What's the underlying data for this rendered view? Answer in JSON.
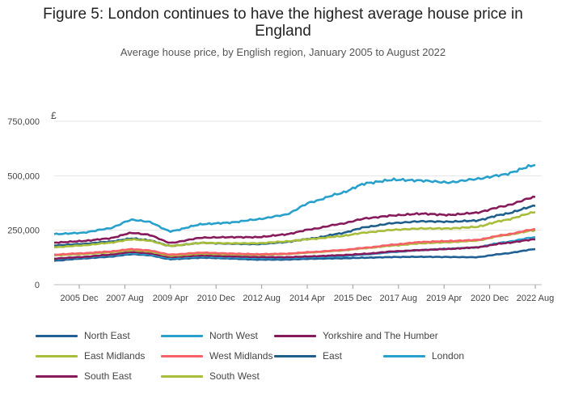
{
  "title": "Figure 5: London continues to have the highest average house price in England",
  "subtitle": "Average house price, by English region, January 2005 to August 2022",
  "chart_data": {
    "type": "line",
    "title": "Figure 5: London continues to have the highest average house price in England",
    "subtitle": "Average house price, by English region, January 2005 to August 2022",
    "y_unit_label": "£",
    "ylim": [
      0,
      750000
    ],
    "y_ticks": [
      0,
      250000,
      500000,
      750000
    ],
    "y_tick_labels": [
      "0",
      "250,000",
      "500,000",
      "750,000"
    ],
    "x_ticks": [
      "2005-12",
      "2007-08",
      "2009-04",
      "2010-12",
      "2012-08",
      "2014-04",
      "2015-12",
      "2017-08",
      "2019-04",
      "2020-12",
      "2022-08"
    ],
    "x_tick_labels": [
      "2005 Dec",
      "2007 Aug",
      "2009 Apr",
      "2010 Dec",
      "2012 Aug",
      "2014 Apr",
      "2015 Dec",
      "2017 Aug",
      "2019 Apr",
      "2020 Dec",
      "2022 Aug"
    ],
    "xlim": [
      "2005-01",
      "2022-08"
    ],
    "grid": "horizontal",
    "legend_position": "bottom",
    "series": [
      {
        "name": "North East",
        "color": "#206095",
        "points": [
          [
            "2005-01",
            110000
          ],
          [
            "2006-01",
            120000
          ],
          [
            "2007-01",
            128000
          ],
          [
            "2007-11",
            140000
          ],
          [
            "2008-06",
            136000
          ],
          [
            "2009-04",
            117000
          ],
          [
            "2010-06",
            124000
          ],
          [
            "2011-06",
            120000
          ],
          [
            "2012-06",
            115000
          ],
          [
            "2013-06",
            115000
          ],
          [
            "2014-06",
            119000
          ],
          [
            "2015-06",
            121000
          ],
          [
            "2016-06",
            124000
          ],
          [
            "2017-06",
            127000
          ],
          [
            "2018-06",
            128000
          ],
          [
            "2019-06",
            127000
          ],
          [
            "2020-06",
            126000
          ],
          [
            "2021-06",
            142000
          ],
          [
            "2022-08",
            163000
          ]
        ]
      },
      {
        "name": "North West",
        "color": "#27A0CC",
        "points": [
          [
            "2005-01",
            118000
          ],
          [
            "2006-01",
            125000
          ],
          [
            "2007-01",
            134000
          ],
          [
            "2007-11",
            145000
          ],
          [
            "2008-06",
            140000
          ],
          [
            "2009-04",
            122000
          ],
          [
            "2010-06",
            130000
          ],
          [
            "2011-06",
            125000
          ],
          [
            "2012-06",
            122000
          ],
          [
            "2013-06",
            122000
          ],
          [
            "2014-06",
            126000
          ],
          [
            "2015-06",
            130000
          ],
          [
            "2016-06",
            139000
          ],
          [
            "2017-06",
            150000
          ],
          [
            "2018-06",
            159000
          ],
          [
            "2019-06",
            165000
          ],
          [
            "2020-06",
            171000
          ],
          [
            "2021-06",
            194000
          ],
          [
            "2022-08",
            218000
          ]
        ]
      },
      {
        "name": "Yorkshire and The Humber",
        "color": "#871A5B",
        "points": [
          [
            "2005-01",
            120000
          ],
          [
            "2006-01",
            127000
          ],
          [
            "2007-01",
            137000
          ],
          [
            "2007-11",
            150000
          ],
          [
            "2008-06",
            145000
          ],
          [
            "2009-04",
            127000
          ],
          [
            "2010-06",
            134000
          ],
          [
            "2011-06",
            130000
          ],
          [
            "2012-06",
            127000
          ],
          [
            "2013-06",
            126000
          ],
          [
            "2014-06",
            130000
          ],
          [
            "2015-06",
            135000
          ],
          [
            "2016-06",
            142000
          ],
          [
            "2017-06",
            153000
          ],
          [
            "2018-06",
            159000
          ],
          [
            "2019-06",
            164000
          ],
          [
            "2020-06",
            171000
          ],
          [
            "2021-06",
            190000
          ],
          [
            "2022-08",
            208000
          ]
        ]
      },
      {
        "name": "East Midlands",
        "color": "#A8BD3A",
        "points": [
          [
            "2005-01",
            135000
          ],
          [
            "2006-01",
            140000
          ],
          [
            "2007-01",
            148000
          ],
          [
            "2007-11",
            158000
          ],
          [
            "2008-06",
            153000
          ],
          [
            "2009-04",
            133000
          ],
          [
            "2010-06",
            142000
          ],
          [
            "2011-06",
            139000
          ],
          [
            "2012-06",
            137000
          ],
          [
            "2013-06",
            140000
          ],
          [
            "2014-06",
            148000
          ],
          [
            "2015-06",
            156000
          ],
          [
            "2016-06",
            168000
          ],
          [
            "2017-06",
            180000
          ],
          [
            "2018-06",
            190000
          ],
          [
            "2019-06",
            195000
          ],
          [
            "2020-06",
            202000
          ],
          [
            "2021-06",
            226000
          ],
          [
            "2022-08",
            250000
          ]
        ]
      },
      {
        "name": "West Midlands",
        "color": "#F66068",
        "points": [
          [
            "2005-01",
            138000
          ],
          [
            "2006-01",
            144000
          ],
          [
            "2007-01",
            152000
          ],
          [
            "2007-11",
            163000
          ],
          [
            "2008-06",
            158000
          ],
          [
            "2009-04",
            138000
          ],
          [
            "2010-06",
            147000
          ],
          [
            "2011-06",
            143000
          ],
          [
            "2012-06",
            140000
          ],
          [
            "2013-06",
            142000
          ],
          [
            "2014-06",
            150000
          ],
          [
            "2015-06",
            158000
          ],
          [
            "2016-06",
            170000
          ],
          [
            "2017-06",
            184000
          ],
          [
            "2018-06",
            196000
          ],
          [
            "2019-06",
            200000
          ],
          [
            "2020-06",
            205000
          ],
          [
            "2021-06",
            228000
          ],
          [
            "2022-08",
            255000
          ]
        ]
      },
      {
        "name": "East",
        "color": "#1F5F8B",
        "points": [
          [
            "2005-01",
            180000
          ],
          [
            "2006-01",
            187000
          ],
          [
            "2007-01",
            197000
          ],
          [
            "2007-11",
            212000
          ],
          [
            "2008-06",
            205000
          ],
          [
            "2009-04",
            178000
          ],
          [
            "2010-06",
            192000
          ],
          [
            "2011-06",
            188000
          ],
          [
            "2012-06",
            186000
          ],
          [
            "2013-06",
            195000
          ],
          [
            "2014-06",
            212000
          ],
          [
            "2015-06",
            234000
          ],
          [
            "2016-06",
            265000
          ],
          [
            "2017-06",
            283000
          ],
          [
            "2018-06",
            291000
          ],
          [
            "2019-06",
            289000
          ],
          [
            "2020-06",
            294000
          ],
          [
            "2021-06",
            323000
          ],
          [
            "2022-08",
            362000
          ]
        ]
      },
      {
        "name": "London",
        "color": "#27A0CC",
        "points": [
          [
            "2005-01",
            232000
          ],
          [
            "2006-01",
            238000
          ],
          [
            "2007-01",
            258000
          ],
          [
            "2007-11",
            298000
          ],
          [
            "2008-06",
            290000
          ],
          [
            "2009-04",
            245000
          ],
          [
            "2010-06",
            278000
          ],
          [
            "2011-06",
            285000
          ],
          [
            "2012-06",
            300000
          ],
          [
            "2013-06",
            320000
          ],
          [
            "2014-06",
            380000
          ],
          [
            "2015-06",
            418000
          ],
          [
            "2016-06",
            466000
          ],
          [
            "2017-06",
            482000
          ],
          [
            "2018-06",
            478000
          ],
          [
            "2019-06",
            469000
          ],
          [
            "2020-06",
            485000
          ],
          [
            "2021-06",
            505000
          ],
          [
            "2022-08",
            550000
          ]
        ]
      },
      {
        "name": "South East",
        "color": "#871A5B",
        "points": [
          [
            "2005-01",
            193000
          ],
          [
            "2006-01",
            200000
          ],
          [
            "2007-01",
            212000
          ],
          [
            "2007-11",
            238000
          ],
          [
            "2008-06",
            230000
          ],
          [
            "2009-04",
            192000
          ],
          [
            "2010-06",
            216000
          ],
          [
            "2011-06",
            218000
          ],
          [
            "2012-06",
            218000
          ],
          [
            "2013-06",
            230000
          ],
          [
            "2014-06",
            255000
          ],
          [
            "2015-06",
            278000
          ],
          [
            "2016-06",
            305000
          ],
          [
            "2017-06",
            318000
          ],
          [
            "2018-06",
            326000
          ],
          [
            "2019-06",
            320000
          ],
          [
            "2020-06",
            330000
          ],
          [
            "2021-06",
            360000
          ],
          [
            "2022-08",
            403000
          ]
        ]
      },
      {
        "name": "South West",
        "color": "#A8BD3A",
        "points": [
          [
            "2005-01",
            172000
          ],
          [
            "2006-01",
            180000
          ],
          [
            "2007-01",
            192000
          ],
          [
            "2007-11",
            208000
          ],
          [
            "2008-06",
            203000
          ],
          [
            "2009-04",
            178000
          ],
          [
            "2010-06",
            192000
          ],
          [
            "2011-06",
            190000
          ],
          [
            "2012-06",
            190000
          ],
          [
            "2013-06",
            198000
          ],
          [
            "2014-06",
            210000
          ],
          [
            "2015-06",
            222000
          ],
          [
            "2016-06",
            240000
          ],
          [
            "2017-06",
            252000
          ],
          [
            "2018-06",
            258000
          ],
          [
            "2019-06",
            258000
          ],
          [
            "2020-06",
            265000
          ],
          [
            "2021-06",
            295000
          ],
          [
            "2022-08",
            333000
          ]
        ]
      }
    ]
  }
}
